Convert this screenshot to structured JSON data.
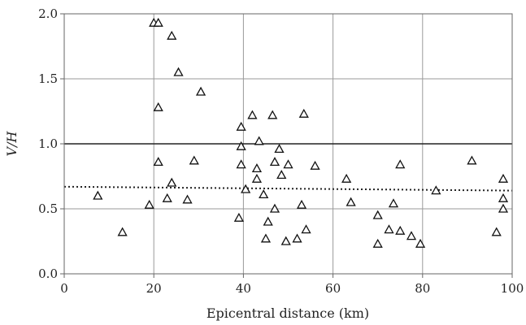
{
  "chart_data": {
    "type": "scatter",
    "xlabel": "Epicentral distance (km)",
    "ylabel": "V/H",
    "xlim": [
      0,
      100
    ],
    "ylim": [
      0,
      2.0
    ],
    "x_ticks": [
      0,
      20,
      40,
      60,
      80,
      100
    ],
    "y_ticks": [
      0.0,
      0.5,
      1.0,
      1.5,
      2.0
    ],
    "x_tick_labels": [
      "0",
      "20",
      "40",
      "60",
      "80",
      "100"
    ],
    "y_tick_labels": [
      "0.0",
      "0.5",
      "1.0",
      "1.5",
      "2.0"
    ],
    "grid": true,
    "marker": "open-triangle",
    "reference_line": {
      "y": 1.0,
      "style": "solid"
    },
    "trend_line": {
      "style": "dotted",
      "x": [
        0,
        100
      ],
      "y": [
        0.67,
        0.64
      ]
    },
    "points": [
      [
        7.5,
        0.6
      ],
      [
        13,
        0.32
      ],
      [
        19,
        0.53
      ],
      [
        20,
        1.93
      ],
      [
        21,
        1.93
      ],
      [
        21,
        1.28
      ],
      [
        21,
        0.86
      ],
      [
        23,
        0.58
      ],
      [
        24,
        1.83
      ],
      [
        24,
        0.7
      ],
      [
        25.5,
        1.55
      ],
      [
        27.5,
        0.57
      ],
      [
        29,
        0.87
      ],
      [
        30.5,
        1.4
      ],
      [
        39,
        0.43
      ],
      [
        39.5,
        1.13
      ],
      [
        39.5,
        0.98
      ],
      [
        39.5,
        0.84
      ],
      [
        40.5,
        0.65
      ],
      [
        42,
        1.22
      ],
      [
        43,
        0.73
      ],
      [
        43,
        0.81
      ],
      [
        43.5,
        1.02
      ],
      [
        44.5,
        0.61
      ],
      [
        45,
        0.27
      ],
      [
        45.5,
        0.4
      ],
      [
        46.5,
        1.22
      ],
      [
        47,
        0.86
      ],
      [
        47,
        0.5
      ],
      [
        48,
        0.96
      ],
      [
        48.5,
        0.76
      ],
      [
        49.5,
        0.25
      ],
      [
        50,
        0.84
      ],
      [
        52,
        0.27
      ],
      [
        53,
        0.53
      ],
      [
        53.5,
        1.23
      ],
      [
        54,
        0.34
      ],
      [
        56,
        0.83
      ],
      [
        63,
        0.73
      ],
      [
        64,
        0.55
      ],
      [
        70,
        0.45
      ],
      [
        70,
        0.23
      ],
      [
        72.5,
        0.34
      ],
      [
        73.5,
        0.54
      ],
      [
        75,
        0.84
      ],
      [
        75,
        0.33
      ],
      [
        77.5,
        0.29
      ],
      [
        79.5,
        0.23
      ],
      [
        83,
        0.64
      ],
      [
        91,
        0.87
      ],
      [
        96.5,
        0.32
      ],
      [
        98,
        0.73
      ],
      [
        98,
        0.58
      ],
      [
        98,
        0.5
      ]
    ]
  }
}
